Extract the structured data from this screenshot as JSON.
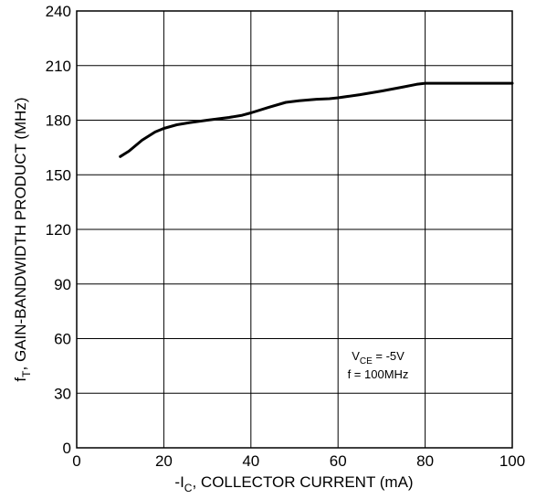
{
  "chart_data": {
    "type": "line",
    "xlabel": {
      "main": "-I",
      "sub": "C",
      "rest": ", COLLECTOR CURRENT (mA)"
    },
    "ylabel": {
      "main": "f",
      "sub": "T",
      "rest": ", GAIN-BANDWIDTH PRODUCT (MHz)"
    },
    "xlim": [
      0,
      100
    ],
    "ylim": [
      0,
      240
    ],
    "x_ticks": [
      "0",
      "20",
      "40",
      "60",
      "80",
      "100"
    ],
    "y_ticks": [
      "0",
      "30",
      "60",
      "90",
      "120",
      "150",
      "180",
      "210",
      "240"
    ],
    "grid": true,
    "series": [
      {
        "x": [
          10,
          12,
          15,
          18,
          20,
          23,
          26,
          30,
          35,
          38,
          40,
          44,
          48,
          51,
          55,
          58,
          60,
          65,
          70,
          75,
          78,
          80,
          85,
          90,
          100
        ],
        "y": [
          160,
          163,
          169,
          173.5,
          175.5,
          177.5,
          178.7,
          180,
          181.5,
          182.7,
          184,
          187,
          189.8,
          190.7,
          191.5,
          191.8,
          192.3,
          194,
          196,
          198.3,
          199.7,
          200.3,
          200.3,
          200.3,
          200.3
        ],
        "color": "#000000"
      }
    ],
    "annotation": {
      "line1": {
        "main": "V",
        "sub": "CE",
        "rest": " = -5V"
      },
      "line2": "f = 100MHz"
    }
  }
}
